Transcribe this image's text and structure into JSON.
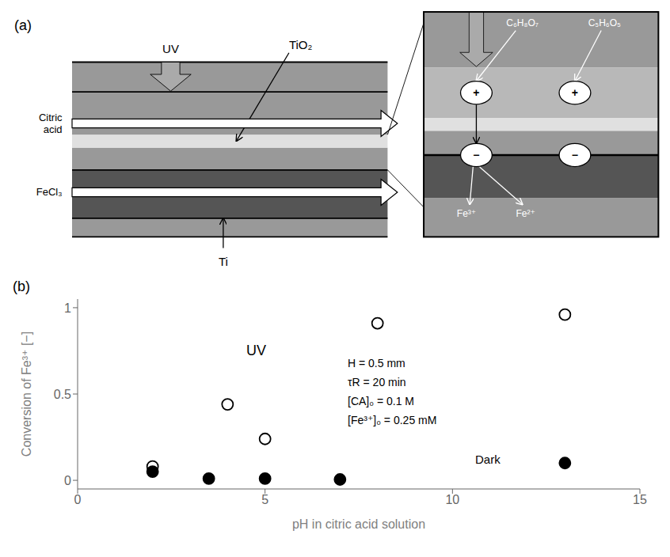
{
  "chart_data": [
    {
      "type": "diagram",
      "title": "(a)",
      "annotations": [
        "UV",
        "TiO₂",
        "Ti",
        "Citric\nacid",
        "FeCl₃",
        "C₆H₈O₇",
        "C₅H₆O₅",
        "Fe³⁺",
        "Fe²⁺",
        "+",
        "−"
      ],
      "colors": [
        "#999999",
        "#555555",
        "#e0e0e0",
        "#b8b8b8",
        "#aaaaaa"
      ]
    },
    {
      "type": "scatter",
      "title": "(b)",
      "x_label": "pH in citric acid solution",
      "y_label": "Conversion of Fe³⁺ [−]",
      "series": [
        {
          "name": "UV",
          "x": [
            2.0,
            4.0,
            5.0,
            8.0,
            13.0
          ],
          "values": [
            0.08,
            0.44,
            0.24,
            0.91,
            0.96
          ],
          "marker": "open_circle",
          "color": "#000000"
        },
        {
          "name": "Dark",
          "x": [
            2.0,
            3.5,
            5.0,
            7.0,
            13.0
          ],
          "values": [
            0.05,
            0.01,
            0.01,
            0.005,
            0.1
          ],
          "marker": "circle",
          "color": "#000000"
        }
      ],
      "annotations": [
        "H = 0.5 mm",
        "τR = 20 min",
        "[CA]₀ = 0.1 M",
        "[Fe³⁺]₀ = 0.25 mM"
      ],
      "xlim": [
        0,
        15
      ],
      "xticks": [
        0,
        5,
        10,
        15
      ],
      "ylim": [
        -0.05,
        1.05
      ],
      "yticks": [
        0,
        0.5,
        1
      ],
      "grid": false
    }
  ]
}
